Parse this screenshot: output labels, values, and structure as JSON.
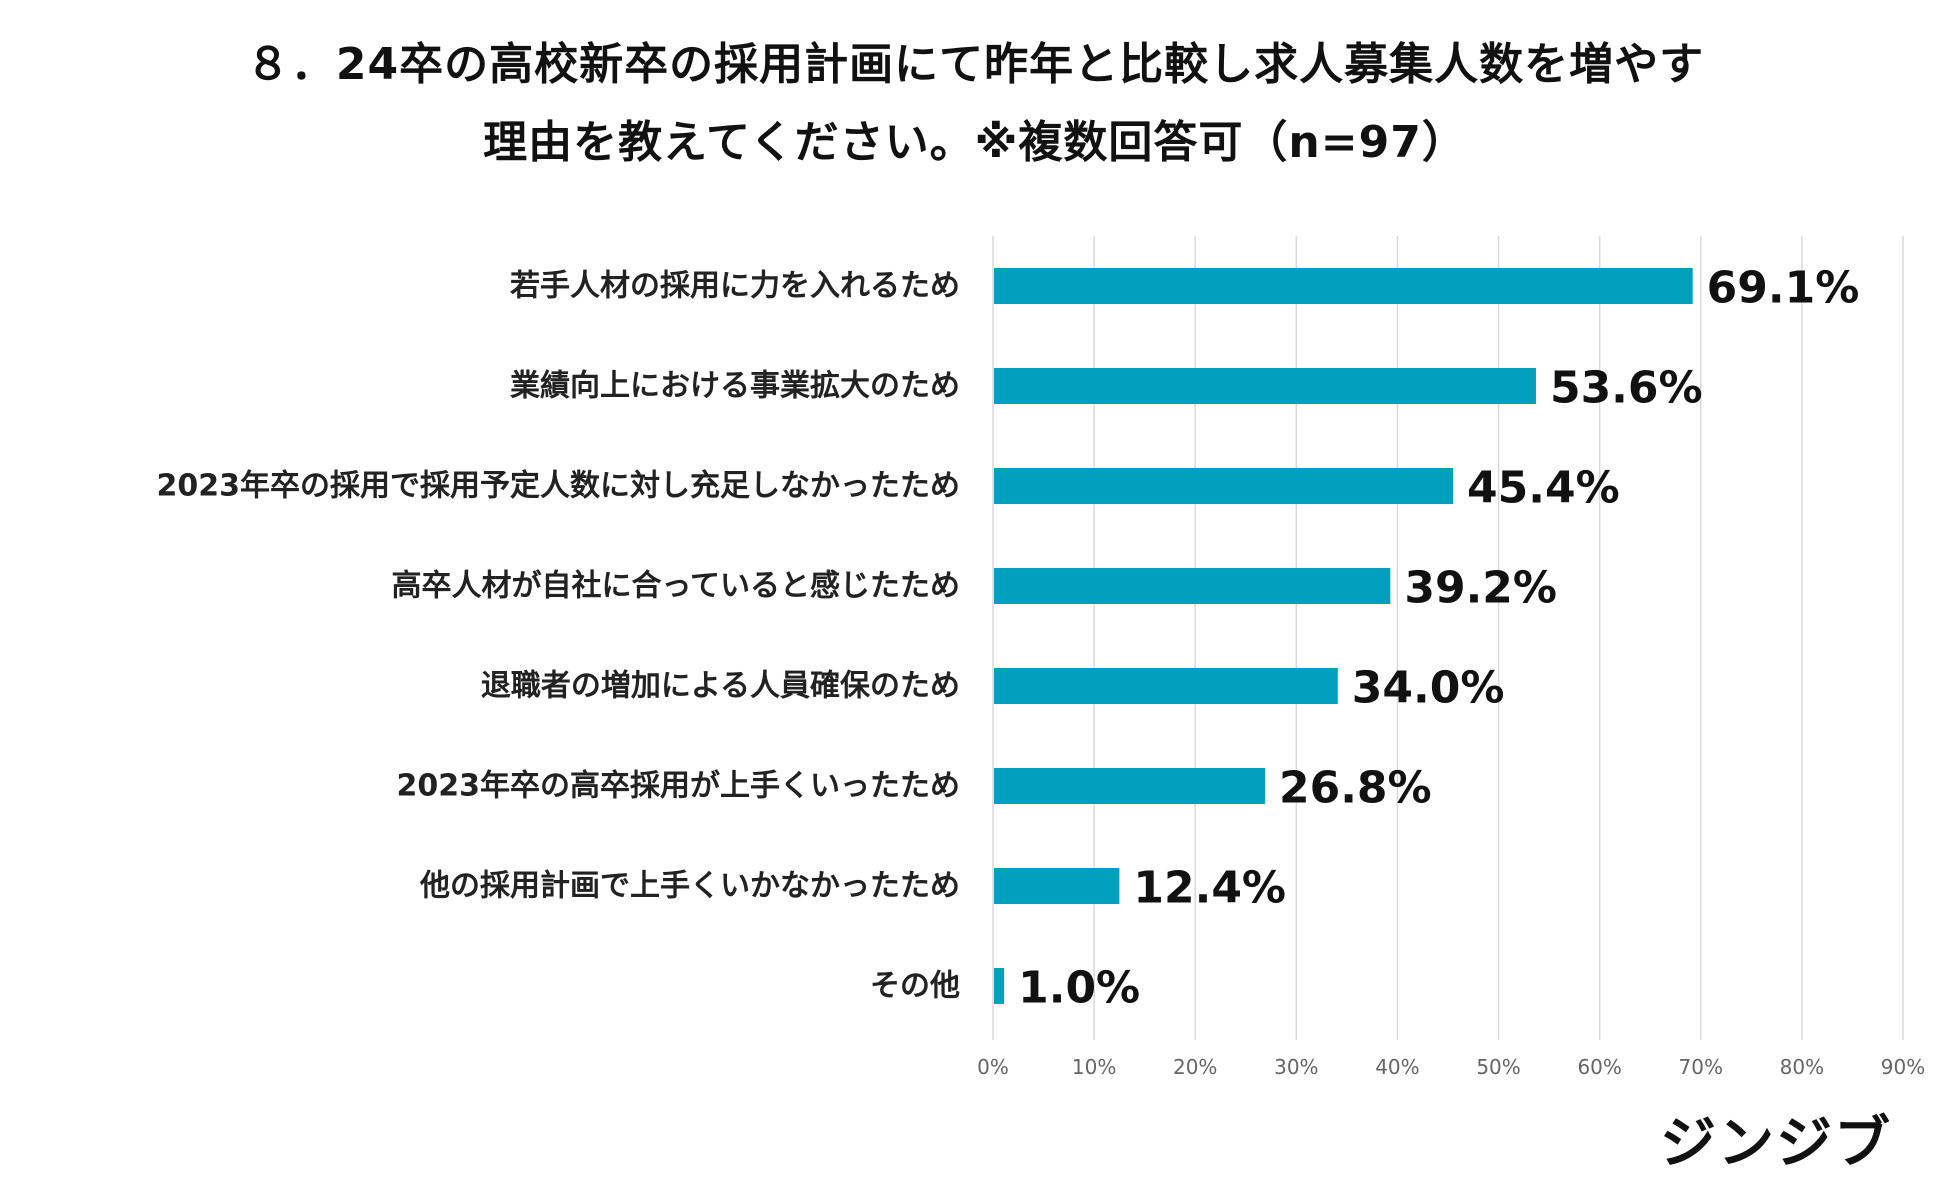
{
  "chart_data": {
    "type": "bar",
    "orientation": "horizontal",
    "title_line1": "８．24卒の高校新卒の採用計画にて昨年と比較し求人募集人数を増やす",
    "title_line2": "理由を教えてください。※複数回答可（n=97）",
    "categories": [
      "若手人材の採用に力を入れるため",
      "業績向上における事業拡大のため",
      "2023年卒の採用で採用予定人数に対し充足しなかったため",
      "高卒人材が自社に合っていると感じたため",
      "退職者の増加による人員確保のため",
      "2023年卒の高卒採用が上手くいったため",
      "他の採用計画で上手くいかなかったため",
      "その他"
    ],
    "values": [
      69.1,
      53.6,
      45.4,
      39.2,
      34.0,
      26.8,
      12.4,
      1.0
    ],
    "value_labels": [
      "69.1%",
      "53.6%",
      "45.4%",
      "39.2%",
      "34.0%",
      "26.8%",
      "12.4%",
      "1.0%"
    ],
    "xlim": [
      0,
      90
    ],
    "ticks": [
      0,
      10,
      20,
      30,
      40,
      50,
      60,
      70,
      80,
      90
    ],
    "tick_labels": [
      "0%",
      "10%",
      "20%",
      "30%",
      "40%",
      "50%",
      "60%",
      "70%",
      "80%",
      "90%"
    ],
    "grid": true,
    "bar_color": "#00A0BE",
    "grid_color": "#D9D9D9"
  },
  "brand": {
    "logo_text": "ジンジブ"
  }
}
